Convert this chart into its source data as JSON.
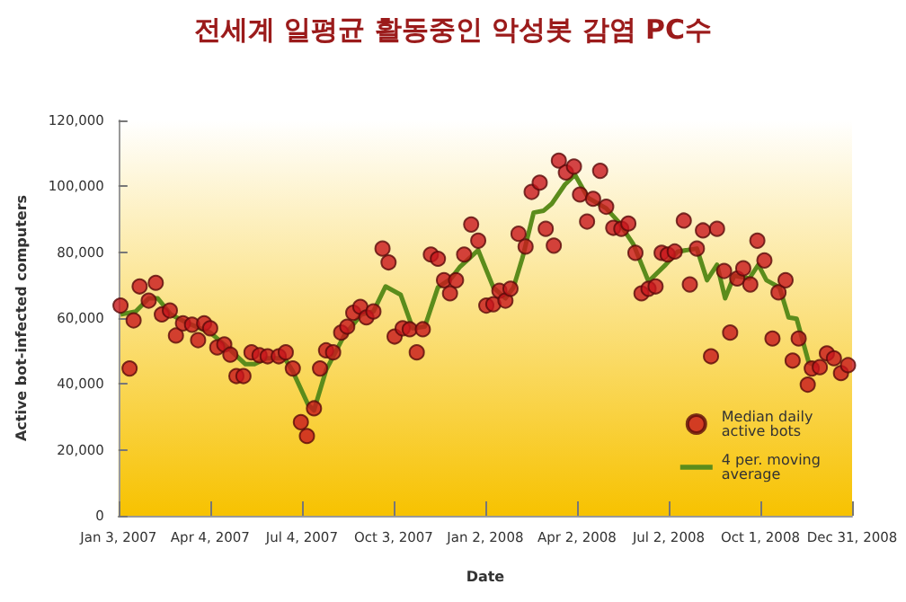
{
  "chart_data": {
    "type": "scatter",
    "title": "전세계 일평균 활동중인 악성봇 감염 PC수",
    "xlabel": "Date",
    "ylabel": "Active bot-infected computers",
    "xlim": [
      "2007-01-03",
      "2008-12-31"
    ],
    "xticks": [
      {
        "value": "2007-01-03",
        "label": "Jan 3, 2007"
      },
      {
        "value": "2007-04-04",
        "label": "Apr 4, 2007"
      },
      {
        "value": "2007-07-04",
        "label": "Jul 4, 2007"
      },
      {
        "value": "2007-10-03",
        "label": "Oct 3, 2007"
      },
      {
        "value": "2008-01-02",
        "label": "Jan 2, 2008"
      },
      {
        "value": "2008-04-02",
        "label": "Apr 2, 2008"
      },
      {
        "value": "2008-07-02",
        "label": "Jul 2, 2008"
      },
      {
        "value": "2008-10-01",
        "label": "Oct 1, 2008"
      },
      {
        "value": "2008-12-31",
        "label": "Dec 31, 2008"
      }
    ],
    "ylim": [
      0,
      120000
    ],
    "yticks": [
      {
        "value": 0,
        "label": "0"
      },
      {
        "value": 20000,
        "label": "20,000"
      },
      {
        "value": 40000,
        "label": "40,000"
      },
      {
        "value": 60000,
        "label": "60,000"
      },
      {
        "value": 80000,
        "label": "80,000"
      },
      {
        "value": 100000,
        "label": "100,000"
      },
      {
        "value": 120000,
        "label": "120,000"
      }
    ],
    "grid": false,
    "legend": "bottom right",
    "series": [
      {
        "name": "Median daily active bots",
        "marker": "circle",
        "color": "#c8161d",
        "x": [
          "2007-01-05",
          "2007-01-14",
          "2007-01-18",
          "2007-01-24",
          "2007-02-02",
          "2007-02-09",
          "2007-02-15",
          "2007-02-23",
          "2007-03-01",
          "2007-03-08",
          "2007-03-17",
          "2007-03-23",
          "2007-03-29",
          "2007-04-04",
          "2007-04-11",
          "2007-04-18",
          "2007-04-24",
          "2007-04-30",
          "2007-05-07",
          "2007-05-15",
          "2007-05-23",
          "2007-05-31",
          "2007-06-11",
          "2007-06-18",
          "2007-06-25",
          "2007-07-03",
          "2007-07-09",
          "2007-07-16",
          "2007-07-22",
          "2007-07-28",
          "2007-08-04",
          "2007-08-12",
          "2007-08-18",
          "2007-08-24",
          "2007-08-31",
          "2007-09-06",
          "2007-09-13",
          "2007-09-22",
          "2007-09-28",
          "2007-10-04",
          "2007-10-12",
          "2007-10-19",
          "2007-10-26",
          "2007-11-01",
          "2007-11-09",
          "2007-11-16",
          "2007-11-22",
          "2007-11-28",
          "2007-12-04",
          "2007-12-12",
          "2007-12-19",
          "2007-12-26",
          "2008-01-03",
          "2008-01-10",
          "2008-01-16",
          "2008-01-22",
          "2008-01-27",
          "2008-02-04",
          "2008-02-11",
          "2008-02-17",
          "2008-02-25",
          "2008-03-02",
          "2008-03-10",
          "2008-03-15",
          "2008-03-22",
          "2008-03-30",
          "2008-04-05",
          "2008-04-12",
          "2008-04-18",
          "2008-04-25",
          "2008-05-01",
          "2008-05-08",
          "2008-05-16",
          "2008-05-23",
          "2008-05-30",
          "2008-06-05",
          "2008-06-12",
          "2008-06-19",
          "2008-06-25",
          "2008-07-01",
          "2008-07-08",
          "2008-07-17",
          "2008-07-23",
          "2008-07-30",
          "2008-08-05",
          "2008-08-13",
          "2008-08-19",
          "2008-08-26",
          "2008-09-01",
          "2008-09-08",
          "2008-09-14",
          "2008-09-21",
          "2008-09-28",
          "2008-10-05",
          "2008-10-13",
          "2008-10-19",
          "2008-10-26",
          "2008-11-02",
          "2008-11-08",
          "2008-11-17",
          "2008-11-21",
          "2008-11-29",
          "2008-12-06",
          "2008-12-13",
          "2008-12-20",
          "2008-12-27"
        ],
        "values": [
          63800,
          44700,
          59300,
          69600,
          65300,
          70700,
          61100,
          62300,
          54700,
          58400,
          58000,
          53300,
          58400,
          56900,
          51100,
          52000,
          48900,
          42400,
          42400,
          49600,
          48700,
          48400,
          48400,
          49600,
          44700,
          28400,
          24200,
          32600,
          44700,
          50200,
          49600,
          55600,
          57400,
          61600,
          63400,
          60200,
          62000,
          81100,
          76900,
          54400,
          56900,
          56600,
          49600,
          56600,
          79300,
          78000,
          71500,
          67500,
          71500,
          79300,
          88400,
          83500,
          63800,
          64200,
          68300,
          65300,
          68900,
          85600,
          81700,
          98300,
          101100,
          87100,
          82000,
          107800,
          104200,
          106000,
          97500,
          89300,
          96200,
          104700,
          93800,
          87400,
          87100,
          88700,
          79800,
          67500,
          68900,
          69600,
          79800,
          79300,
          80200,
          89600,
          70200,
          81100,
          86600,
          48400,
          87100,
          74300,
          55600,
          72000,
          75100,
          70200,
          83500,
          77500,
          53800,
          67800,
          71500,
          47100,
          53800,
          39800,
          44700,
          45100,
          49300,
          47800,
          43300,
          45700
        ]
      },
      {
        "name": "4 per. moving average",
        "type": "line",
        "marker": "none",
        "line_style": "solid",
        "color": "#5b8c1c",
        "x": [
          "2007-01-05",
          "2007-01-20",
          "2007-02-02",
          "2007-02-11",
          "2007-02-24",
          "2007-03-11",
          "2007-04-04",
          "2007-04-18",
          "2007-05-09",
          "2007-05-18",
          "2007-05-30",
          "2007-06-17",
          "2007-06-25",
          "2007-07-10",
          "2007-07-16",
          "2007-07-28",
          "2007-08-15",
          "2007-09-01",
          "2007-09-13",
          "2007-09-25",
          "2007-10-10",
          "2007-10-22",
          "2007-11-03",
          "2007-11-16",
          "2007-11-29",
          "2007-12-08",
          "2007-12-26",
          "2008-01-10",
          "2008-01-22",
          "2008-01-30",
          "2008-02-08",
          "2008-02-19",
          "2008-02-29",
          "2008-03-08",
          "2008-03-21",
          "2008-03-31",
          "2008-04-13",
          "2008-05-01",
          "2008-05-13",
          "2008-05-28",
          "2008-06-12",
          "2008-06-29",
          "2008-07-11",
          "2008-07-30",
          "2008-08-09",
          "2008-08-19",
          "2008-08-27",
          "2008-09-05",
          "2008-09-20",
          "2008-09-29",
          "2008-10-07",
          "2008-10-20",
          "2008-10-29",
          "2008-11-06",
          "2008-11-18",
          "2008-11-27"
        ],
        "values": [
          61100,
          62000,
          66000,
          66000,
          61100,
          58700,
          55600,
          52000,
          46000,
          46000,
          47800,
          47800,
          43800,
          33800,
          32000,
          44200,
          54700,
          61100,
          62000,
          69600,
          67100,
          56900,
          57400,
          69300,
          72000,
          75600,
          80600,
          69300,
          66000,
          69300,
          78400,
          92000,
          92600,
          94700,
          100500,
          103500,
          96500,
          93300,
          89300,
          82400,
          71100,
          76200,
          80200,
          81100,
          71500,
          76200,
          66000,
          72900,
          72000,
          76200,
          71500,
          69300,
          60200,
          59800,
          46500,
          45300
        ]
      }
    ]
  }
}
